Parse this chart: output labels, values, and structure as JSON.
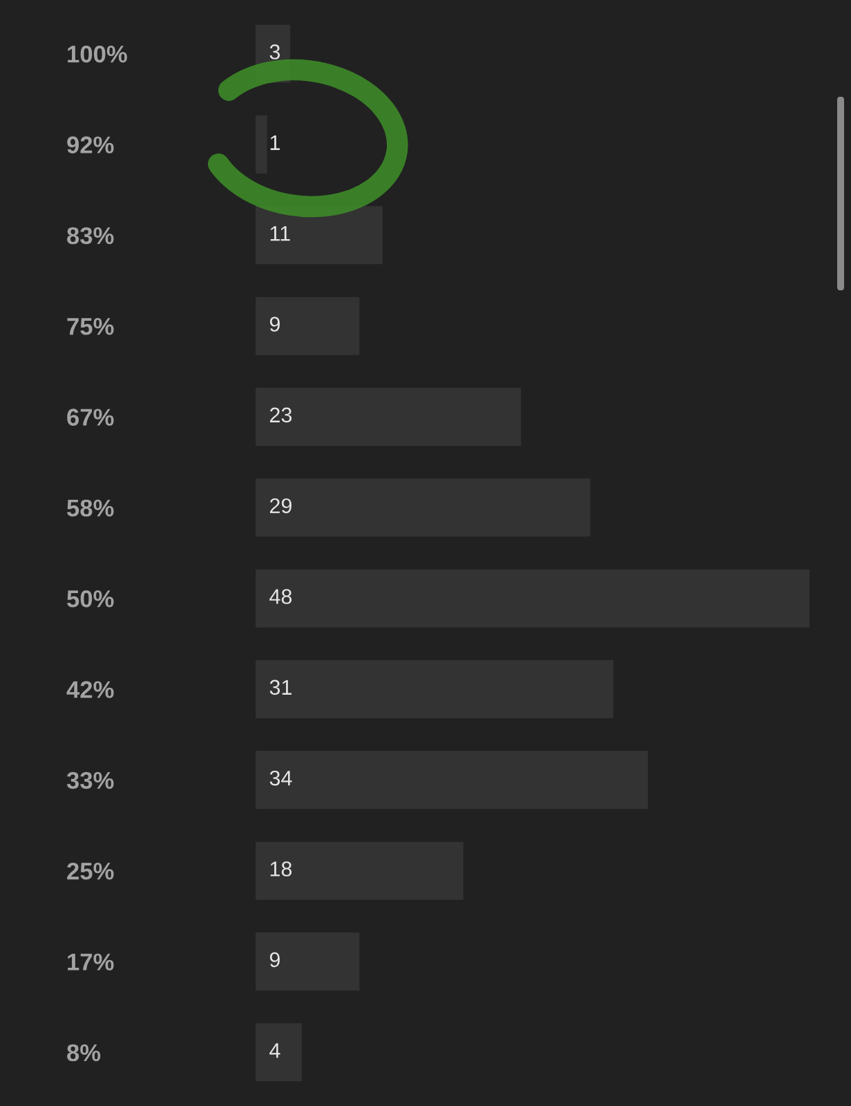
{
  "chart_data": {
    "type": "bar",
    "orientation": "horizontal",
    "categories": [
      "100%",
      "92%",
      "83%",
      "75%",
      "67%",
      "58%",
      "50%",
      "42%",
      "33%",
      "25%",
      "17%",
      "8%"
    ],
    "values": [
      3,
      1,
      11,
      9,
      23,
      29,
      48,
      31,
      34,
      18,
      9,
      4
    ],
    "color": "#333333",
    "data_labels": true,
    "tick_labels": "y"
  }
}
